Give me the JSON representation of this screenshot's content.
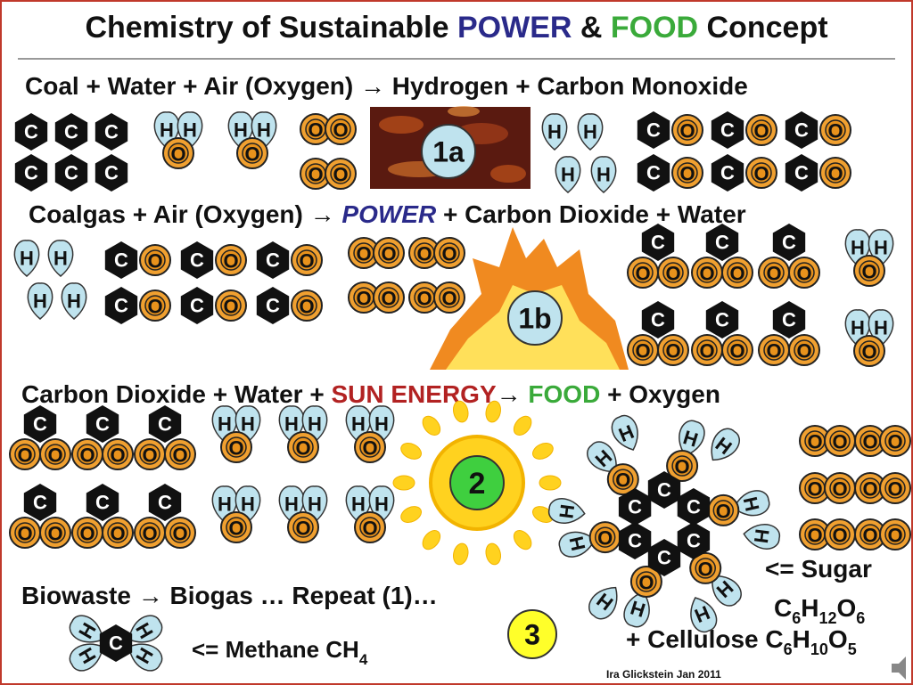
{
  "title": {
    "parts": [
      "Chemistry of Sustainable ",
      "POWER",
      " & ",
      "FOOD",
      " Concept"
    ]
  },
  "equations": [
    {
      "parts": [
        "Coal + Water + Air (Oxygen) → Hydrogen + Carbon Monoxide"
      ]
    },
    {
      "parts": [
        "Coalgas + Air (Oxygen) → ",
        "POWER",
        " + Carbon Dioxide + Water"
      ]
    },
    {
      "parts": [
        "Carbon Dioxide + Water + ",
        "SUN ENERGY",
        "→ ",
        "FOOD",
        " + Oxygen"
      ]
    },
    {
      "parts": [
        "Biowaste → Biogas … Repeat (1)…"
      ]
    }
  ],
  "atoms": {
    "carbon": "C",
    "oxygen": "O",
    "hydrogen": "H"
  },
  "badges": [
    "1a",
    "1b",
    "2",
    "3"
  ],
  "sugar": {
    "label": "<= Sugar",
    "formula": [
      "C",
      "6",
      "H",
      "12",
      "O",
      "6"
    ]
  },
  "cellulose": {
    "label": "+ Cellulose C",
    "formula": [
      "10",
      "O",
      "5"
    ],
    "c_sub": "6",
    "h": "H"
  },
  "methane": {
    "label": "<= Methane CH",
    "sub": "4"
  },
  "credit": "Ira Glickstein Jan 2011"
}
